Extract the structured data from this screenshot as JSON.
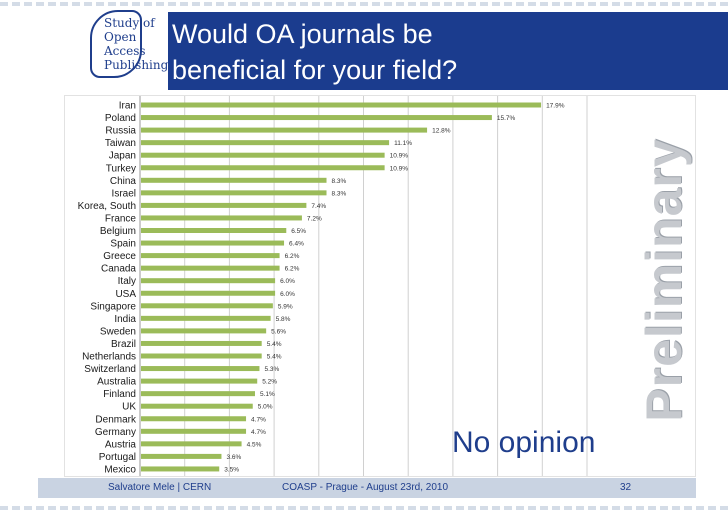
{
  "slide": {
    "title_line1": "Would OA journals be",
    "title_line2": "beneficial for your field?",
    "logo_text": [
      "Study of",
      "Open",
      "Access",
      "Publishing"
    ],
    "watermark": "Preliminary",
    "annotation": "No opinion",
    "footer_left": "Salvatore Mele | CERN",
    "footer_mid": "COASP - Prague - August 23rd, 2010",
    "page_number": "32",
    "colors": {
      "title_bar": "#1b3c8e",
      "bar": "#9bbb59",
      "text": "#1f3e8c",
      "footer": "#c9d3e2"
    }
  },
  "chart_data": {
    "type": "bar",
    "orientation": "horizontal",
    "categories": [
      "Iran",
      "Poland",
      "Russia",
      "Taiwan",
      "Japan",
      "Turkey",
      "China",
      "Israel",
      "Korea, South",
      "France",
      "Belgium",
      "Spain",
      "Greece",
      "Canada",
      "Italy",
      "USA",
      "Singapore",
      "India",
      "Sweden",
      "Brazil",
      "Netherlands",
      "Switzerland",
      "Australia",
      "Finland",
      "UK",
      "Denmark",
      "Germany",
      "Austria",
      "Portugal",
      "Mexico"
    ],
    "values": [
      17.9,
      15.7,
      12.8,
      11.1,
      10.9,
      10.9,
      8.3,
      8.3,
      7.4,
      7.2,
      6.5,
      6.4,
      6.2,
      6.2,
      6.0,
      6.0,
      5.9,
      5.8,
      5.6,
      5.4,
      5.4,
      5.3,
      5.2,
      5.1,
      5.0,
      4.7,
      4.7,
      4.5,
      3.6,
      3.5
    ],
    "value_labels": [
      "17.9%",
      "15.7%",
      "12.8%",
      "11.1%",
      "10.9%",
      "10.9%",
      "8.3%",
      "8.3%",
      "7.4%",
      "7.2%",
      "6.5%",
      "6.4%",
      "6.2%",
      "6.2%",
      "6.0%",
      "6.0%",
      "5.9%",
      "5.8%",
      "5.6%",
      "5.4%",
      "5.4%",
      "5.3%",
      "5.2%",
      "5.1%",
      "5.0%",
      "4.7%",
      "4.7%",
      "4.5%",
      "3.6%",
      "3.5%"
    ],
    "xlim": [
      0,
      20
    ],
    "grid": true,
    "legend": "none"
  }
}
